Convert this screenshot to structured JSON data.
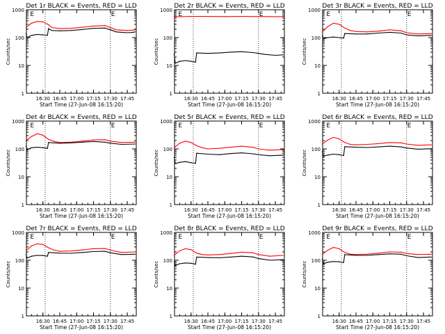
{
  "figure": {
    "start_time_label": "Start Time (27-Jun-08 16:15:20)",
    "ylabel": "Counts/sec",
    "y_tick_labels": [
      "1",
      "10",
      "100",
      "1000"
    ],
    "x_tick_labels": [
      "16:30",
      "16:45",
      "17:00",
      "17:15",
      "17:30",
      "17:45"
    ],
    "marker_label_e": "E",
    "colors": {
      "events": "#000000",
      "lld": "#ff0000",
      "axes": "#000000",
      "background": "#ffffff"
    }
  },
  "chart_data": [
    {
      "type": "line",
      "title": "Det 1r BLACK = Events, RED = LLD",
      "xlabel": "Start Time (27-Jun-08 16:15:20)",
      "ylabel": "Counts/sec",
      "x_scale": "time",
      "y_scale": "log",
      "xlim": [
        "16:15:20",
        "17:53:00"
      ],
      "ylim": [
        1,
        1000
      ],
      "markers": {
        "dotted_vertical_lines": [
          "16:32",
          "17:30"
        ],
        "E_labels": [
          "16:18",
          "17:30"
        ]
      },
      "series": [
        {
          "name": "LLD",
          "color": "#ff0000",
          "x": [
            "16:15",
            "16:20",
            "16:25",
            "16:30",
            "16:35",
            "16:38",
            "16:45",
            "16:55",
            "17:05",
            "17:15",
            "17:25",
            "17:30",
            "17:35",
            "17:40",
            "17:45",
            "17:50",
            "17:52"
          ],
          "y": [
            230,
            330,
            380,
            370,
            290,
            230,
            210,
            215,
            235,
            260,
            270,
            230,
            190,
            185,
            180,
            185,
            190
          ]
        },
        {
          "name": "Events",
          "color": "#000000",
          "x": [
            "16:15",
            "16:16",
            "16:20",
            "16:25",
            "16:30",
            "16:34",
            "16:35",
            "16:38",
            "16:45",
            "16:55",
            "17:05",
            "17:15",
            "17:25",
            "17:30",
            "17:35",
            "17:40",
            "17:45",
            "17:50",
            "17:52"
          ],
          "y": [
            140,
            100,
            120,
            130,
            125,
            120,
            210,
            180,
            175,
            180,
            195,
            215,
            220,
            190,
            160,
            155,
            150,
            155,
            160
          ]
        }
      ]
    },
    {
      "type": "line",
      "title": "Det 2r BLACK = Events, RED = LLD",
      "xlabel": "Start Time (27-Jun-08 16:15:20)",
      "ylabel": "Counts/sec",
      "x_scale": "time",
      "y_scale": "log",
      "xlim": [
        "16:15:20",
        "17:53:00"
      ],
      "ylim": [
        1,
        1000
      ],
      "markers": {
        "dotted_vertical_lines": [
          "16:32",
          "17:30"
        ],
        "E_labels": [
          "16:18",
          "17:30"
        ]
      },
      "series": [
        {
          "name": "LLD",
          "color": "#ff0000",
          "x": [
            "16:15",
            "16:30",
            "16:45",
            "17:00",
            "17:15",
            "17:30",
            "17:45",
            "17:52"
          ],
          "y": [
            560,
            580,
            575,
            570,
            575,
            570,
            565,
            570
          ]
        },
        {
          "name": "Events",
          "color": "#000000",
          "x": [
            "16:15",
            "16:16",
            "16:20",
            "16:25",
            "16:30",
            "16:34",
            "16:35",
            "16:45",
            "16:55",
            "17:05",
            "17:15",
            "17:25",
            "17:30",
            "17:35",
            "17:45",
            "17:52"
          ],
          "y": [
            26,
            12,
            14,
            15,
            14,
            13,
            28,
            27,
            28,
            30,
            31,
            29,
            27,
            25,
            23,
            24
          ]
        }
      ]
    },
    {
      "type": "line",
      "title": "Det 3r BLACK = Events, RED = LLD",
      "xlabel": "Start Time (27-Jun-08 16:15:20)",
      "ylabel": "Counts/sec",
      "x_scale": "time",
      "y_scale": "log",
      "xlim": [
        "16:15:20",
        "17:53:00"
      ],
      "ylim": [
        1,
        1000
      ],
      "markers": {
        "dotted_vertical_lines": [
          "16:32",
          "17:30"
        ],
        "E_labels": [
          "16:18",
          "17:30"
        ]
      },
      "series": [
        {
          "name": "LLD",
          "color": "#ff0000",
          "x": [
            "16:15",
            "16:20",
            "16:25",
            "16:30",
            "16:35",
            "16:40",
            "16:45",
            "16:55",
            "17:05",
            "17:15",
            "17:25",
            "17:30",
            "17:40",
            "17:52"
          ],
          "y": [
            160,
            250,
            330,
            300,
            220,
            180,
            165,
            160,
            170,
            190,
            175,
            150,
            135,
            140
          ]
        },
        {
          "name": "Events",
          "color": "#000000",
          "x": [
            "16:15",
            "16:16",
            "16:20",
            "16:25",
            "16:30",
            "16:34",
            "16:35",
            "16:45",
            "16:55",
            "17:05",
            "17:15",
            "17:25",
            "17:30",
            "17:40",
            "17:52"
          ],
          "y": [
            115,
            90,
            100,
            105,
            100,
            95,
            140,
            135,
            135,
            145,
            155,
            145,
            125,
            115,
            120
          ]
        }
      ]
    },
    {
      "type": "line",
      "title": "Det 4r BLACK = Events, RED = LLD",
      "xlabel": "Start Time (27-Jun-08 16:15:20)",
      "ylabel": "Counts/sec",
      "x_scale": "time",
      "y_scale": "log",
      "xlim": [
        "16:15:20",
        "17:53:00"
      ],
      "ylim": [
        1,
        1000
      ],
      "markers": {
        "dotted_vertical_lines": [
          "16:32",
          "17:30"
        ],
        "E_labels": [
          "16:18",
          "17:30"
        ]
      },
      "series": [
        {
          "name": "LLD",
          "color": "#ff0000",
          "x": [
            "16:15",
            "16:20",
            "16:25",
            "16:30",
            "16:35",
            "16:40",
            "16:45",
            "16:55",
            "17:05",
            "17:15",
            "17:25",
            "17:30",
            "17:40",
            "17:52"
          ],
          "y": [
            200,
            280,
            350,
            310,
            220,
            185,
            170,
            175,
            190,
            210,
            215,
            190,
            170,
            175
          ]
        },
        {
          "name": "Events",
          "color": "#000000",
          "x": [
            "16:15",
            "16:16",
            "16:20",
            "16:25",
            "16:30",
            "16:34",
            "16:35",
            "16:45",
            "16:55",
            "17:05",
            "17:15",
            "17:25",
            "17:30",
            "17:40",
            "17:52"
          ],
          "y": [
            125,
            95,
            110,
            115,
            110,
            105,
            170,
            160,
            165,
            175,
            185,
            175,
            160,
            145,
            150
          ]
        }
      ]
    },
    {
      "type": "line",
      "title": "Det 5r BLACK = Events, RED = LLD",
      "xlabel": "Start Time (27-Jun-08 16:15:20)",
      "ylabel": "Counts/sec",
      "x_scale": "time",
      "y_scale": "log",
      "xlim": [
        "16:15:20",
        "17:53:00"
      ],
      "ylim": [
        1,
        1000
      ],
      "markers": {
        "dotted_vertical_lines": [
          "16:32",
          "17:30"
        ],
        "E_labels": [
          "16:18",
          "17:30"
        ]
      },
      "series": [
        {
          "name": "LLD",
          "color": "#ff0000",
          "x": [
            "16:15",
            "16:20",
            "16:25",
            "16:30",
            "16:35",
            "16:40",
            "16:45",
            "16:55",
            "17:05",
            "17:15",
            "17:25",
            "17:30",
            "17:40",
            "17:52"
          ],
          "y": [
            110,
            160,
            190,
            170,
            130,
            110,
            100,
            105,
            115,
            125,
            115,
            100,
            90,
            95
          ]
        },
        {
          "name": "Events",
          "color": "#000000",
          "x": [
            "16:15",
            "16:16",
            "16:20",
            "16:25",
            "16:30",
            "16:34",
            "16:35",
            "16:45",
            "16:55",
            "17:05",
            "17:15",
            "17:25",
            "17:30",
            "17:40",
            "17:52"
          ],
          "y": [
            50,
            30,
            33,
            35,
            32,
            30,
            70,
            65,
            62,
            68,
            72,
            67,
            62,
            57,
            60
          ]
        }
      ]
    },
    {
      "type": "line",
      "title": "Det 6r BLACK = Events, RED = LLD",
      "xlabel": "Start Time (27-Jun-08 16:15:20)",
      "ylabel": "Counts/sec",
      "x_scale": "time",
      "y_scale": "log",
      "xlim": [
        "16:15:20",
        "17:53:00"
      ],
      "ylim": [
        1,
        1000
      ],
      "markers": {
        "dotted_vertical_lines": [
          "16:32",
          "17:30"
        ],
        "E_labels": [
          "16:18",
          "17:30"
        ]
      },
      "series": [
        {
          "name": "LLD",
          "color": "#ff0000",
          "x": [
            "16:15",
            "16:20",
            "16:25",
            "16:30",
            "16:35",
            "16:40",
            "16:45",
            "16:55",
            "17:05",
            "17:15",
            "17:25",
            "17:30",
            "17:40",
            "17:52"
          ],
          "y": [
            150,
            210,
            260,
            230,
            170,
            145,
            140,
            145,
            155,
            170,
            165,
            150,
            135,
            140
          ]
        },
        {
          "name": "Events",
          "color": "#000000",
          "x": [
            "16:15",
            "16:16",
            "16:20",
            "16:25",
            "16:30",
            "16:34",
            "16:35",
            "16:45",
            "16:55",
            "17:05",
            "17:15",
            "17:25",
            "17:30",
            "17:40",
            "17:52"
          ],
          "y": [
            80,
            55,
            60,
            65,
            62,
            58,
            120,
            115,
            112,
            118,
            125,
            118,
            108,
            98,
            102
          ]
        }
      ]
    },
    {
      "type": "line",
      "title": "Det 7r BLACK = Events, RED = LLD",
      "xlabel": "Start Time (27-Jun-08 16:15:20)",
      "ylabel": "Counts/sec",
      "x_scale": "time",
      "y_scale": "log",
      "xlim": [
        "16:15:20",
        "17:53:00"
      ],
      "ylim": [
        1,
        1000
      ],
      "markers": {
        "dotted_vertical_lines": [
          "16:32",
          "17:30"
        ],
        "E_labels": [
          "16:18",
          "17:30"
        ]
      },
      "series": [
        {
          "name": "LLD",
          "color": "#ff0000",
          "x": [
            "16:15",
            "16:20",
            "16:25",
            "16:30",
            "16:35",
            "16:40",
            "16:45",
            "16:55",
            "17:05",
            "17:15",
            "17:25",
            "17:30",
            "17:40",
            "17:52"
          ],
          "y": [
            220,
            330,
            390,
            370,
            280,
            230,
            210,
            215,
            235,
            260,
            265,
            230,
            190,
            200
          ]
        },
        {
          "name": "Events",
          "color": "#000000",
          "x": [
            "16:15",
            "16:16",
            "16:20",
            "16:25",
            "16:30",
            "16:34",
            "16:35",
            "16:45",
            "16:55",
            "17:05",
            "17:15",
            "17:25",
            "17:30",
            "17:40",
            "17:52"
          ],
          "y": [
            165,
            120,
            140,
            150,
            148,
            140,
            190,
            180,
            178,
            190,
            205,
            210,
            185,
            160,
            165
          ]
        }
      ]
    },
    {
      "type": "line",
      "title": "Det 8r BLACK = Events, RED = LLD",
      "xlabel": "Start Time (27-Jun-08 16:15:20)",
      "ylabel": "Counts/sec",
      "x_scale": "time",
      "y_scale": "log",
      "xlim": [
        "16:15:20",
        "17:53:00"
      ],
      "ylim": [
        1,
        1000
      ],
      "markers": {
        "dotted_vertical_lines": [
          "16:32",
          "17:30"
        ],
        "E_labels": [
          "16:18",
          "17:30"
        ]
      },
      "series": [
        {
          "name": "LLD",
          "color": "#ff0000",
          "x": [
            "16:15",
            "16:20",
            "16:25",
            "16:30",
            "16:35",
            "16:40",
            "16:45",
            "16:55",
            "17:05",
            "17:15",
            "17:25",
            "17:30",
            "17:40",
            "17:52"
          ],
          "y": [
            150,
            220,
            260,
            240,
            180,
            160,
            155,
            160,
            175,
            195,
            185,
            160,
            140,
            150
          ]
        },
        {
          "name": "Events",
          "color": "#000000",
          "x": [
            "16:15",
            "16:16",
            "16:20",
            "16:25",
            "16:30",
            "16:34",
            "16:35",
            "16:45",
            "16:55",
            "17:05",
            "17:15",
            "17:25",
            "17:30",
            "17:40",
            "17:52"
          ],
          "y": [
            90,
            65,
            75,
            80,
            78,
            72,
            130,
            125,
            122,
            130,
            140,
            132,
            115,
            100,
            105
          ]
        }
      ]
    },
    {
      "type": "line",
      "title": "Det 9r BLACK = Events, RED = LLD",
      "xlabel": "Start Time (27-Jun-08 16:15:20)",
      "ylabel": "Counts/sec",
      "x_scale": "time",
      "y_scale": "log",
      "xlim": [
        "16:15:20",
        "17:53:00"
      ],
      "ylim": [
        1,
        1000
      ],
      "markers": {
        "dotted_vertical_lines": [
          "16:32",
          "17:30"
        ],
        "E_labels": [
          "16:18",
          "17:30"
        ]
      },
      "series": [
        {
          "name": "LLD",
          "color": "#ff0000",
          "x": [
            "16:15",
            "16:20",
            "16:25",
            "16:30",
            "16:35",
            "16:40",
            "16:45",
            "16:55",
            "17:05",
            "17:15",
            "17:25",
            "17:30",
            "17:40",
            "17:52"
          ],
          "y": [
            160,
            230,
            290,
            260,
            190,
            165,
            160,
            165,
            180,
            200,
            195,
            175,
            160,
            165
          ]
        },
        {
          "name": "Events",
          "color": "#000000",
          "x": [
            "16:15",
            "16:16",
            "16:20",
            "16:25",
            "16:30",
            "16:34",
            "16:35",
            "16:45",
            "16:55",
            "17:05",
            "17:15",
            "17:25",
            "17:30",
            "17:40",
            "17:52"
          ],
          "y": [
            110,
            75,
            85,
            90,
            88,
            82,
            160,
            150,
            150,
            160,
            170,
            165,
            145,
            125,
            130
          ]
        }
      ]
    }
  ]
}
